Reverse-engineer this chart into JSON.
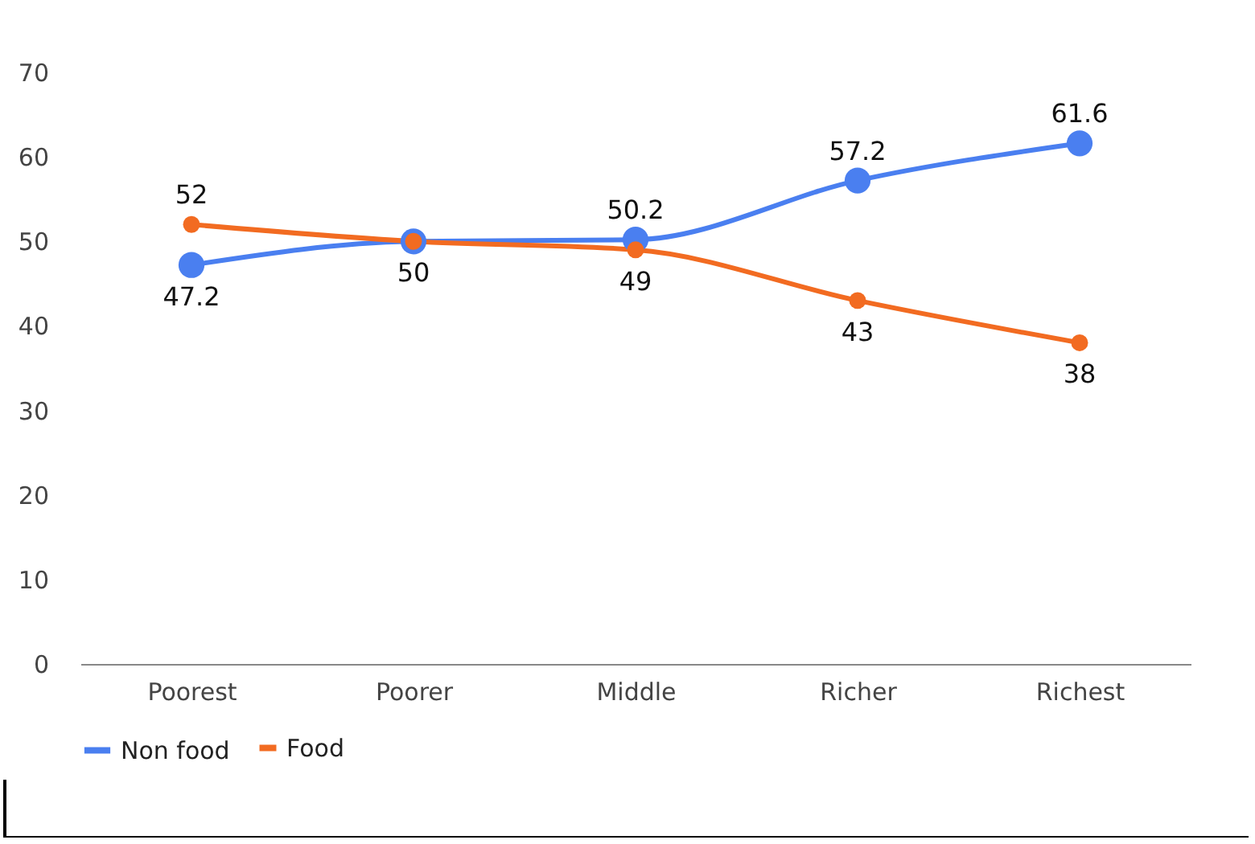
{
  "chart_data": {
    "type": "line",
    "categories": [
      "Poorest",
      "Poorer",
      "Middle",
      "Richer",
      "Richest"
    ],
    "series": [
      {
        "name": "Non food",
        "color": "#4a7ff0",
        "values": [
          47.2,
          50,
          50.2,
          57.2,
          61.6
        ],
        "value_labels": [
          "47.2",
          null,
          "50.2",
          "57.2",
          "61.6"
        ]
      },
      {
        "name": "Food",
        "color": "#f26b21",
        "values": [
          52,
          50,
          49,
          43,
          38
        ],
        "value_labels": [
          "52",
          "50",
          "49",
          "43",
          "38"
        ]
      }
    ],
    "ylim": [
      0,
      70
    ],
    "yticks": [
      0,
      10,
      20,
      30,
      40,
      50,
      60,
      70
    ],
    "grid": false,
    "legend": "bottom",
    "marker": "circle",
    "line_style": "solid"
  }
}
